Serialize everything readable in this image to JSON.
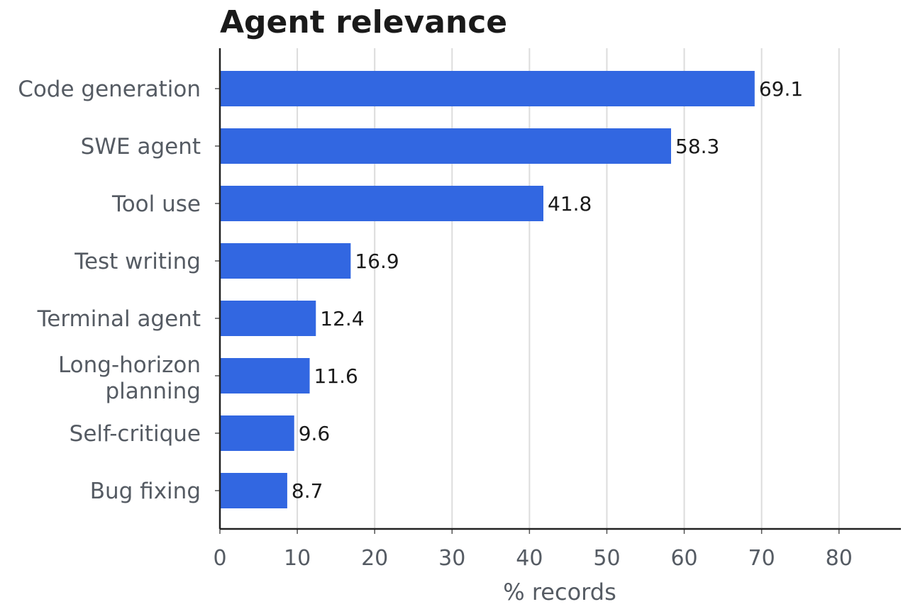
{
  "chart_data": {
    "type": "bar",
    "orientation": "horizontal",
    "title": "Agent relevance",
    "xlabel": "% records",
    "ylabel": "",
    "xlim": [
      0,
      88
    ],
    "xticks": [
      0,
      10,
      20,
      30,
      40,
      50,
      60,
      70,
      80
    ],
    "grid": "vertical",
    "bar_color": "#3267e1",
    "categories": [
      "Code generation",
      "SWE agent",
      "Tool use",
      "Test writing",
      "Terminal agent",
      "Long-horizon planning",
      "Self-critique",
      "Bug fixing"
    ],
    "values": [
      69.1,
      58.3,
      41.8,
      16.9,
      12.4,
      11.6,
      9.6,
      8.7
    ],
    "value_labels": [
      "69.1",
      "58.3",
      "41.8",
      "16.9",
      "12.4",
      "11.6",
      "9.6",
      "8.7"
    ]
  }
}
